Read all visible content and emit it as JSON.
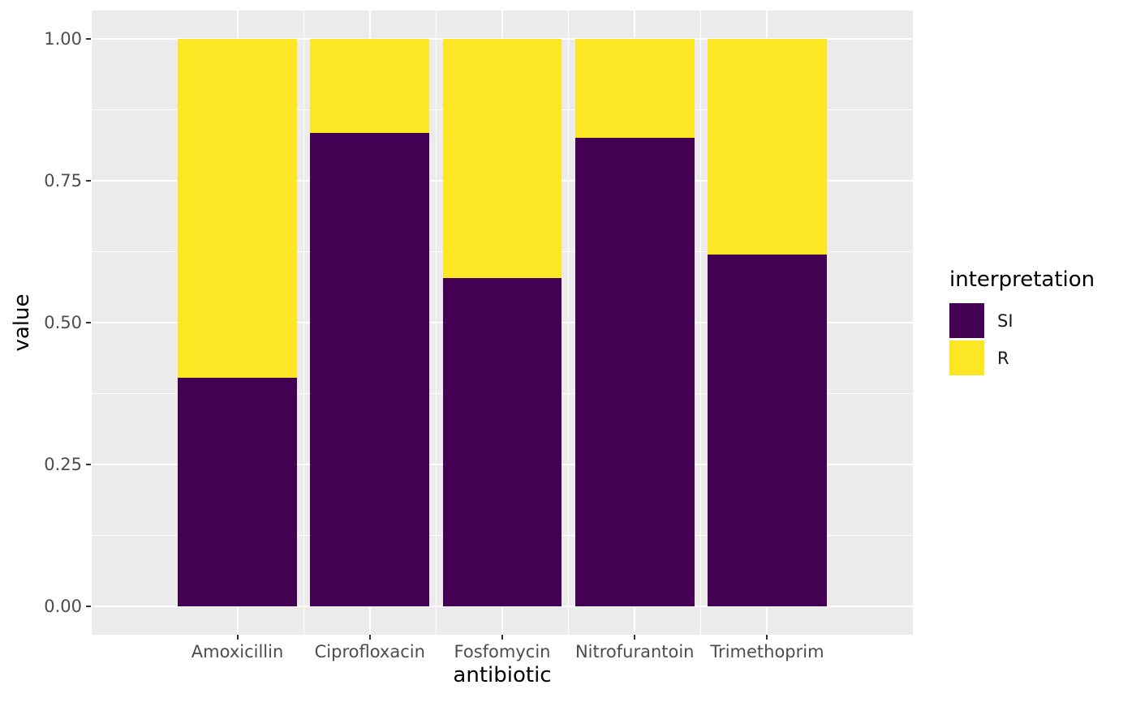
{
  "chart_data": {
    "type": "bar",
    "stacked": true,
    "orientation": "vertical",
    "title": "",
    "xlabel": "antibiotic",
    "ylabel": "value",
    "categories": [
      "Amoxicillin",
      "Ciprofloxacin",
      "Fosfomycin",
      "Nitrofurantoin",
      "Trimethoprim"
    ],
    "series": [
      {
        "name": "SI",
        "color": "#440154",
        "values": [
          0.403,
          0.834,
          0.578,
          0.826,
          0.62
        ]
      },
      {
        "name": "R",
        "color": "#FDE725",
        "values": [
          0.597,
          0.166,
          0.422,
          0.174,
          0.38
        ]
      }
    ],
    "ylim": [
      0,
      1
    ],
    "y_ticks": [
      {
        "value": 0.0,
        "label": "0.00"
      },
      {
        "value": 0.25,
        "label": "0.25"
      },
      {
        "value": 0.5,
        "label": "0.50"
      },
      {
        "value": 0.75,
        "label": "0.75"
      },
      {
        "value": 1.0,
        "label": "1.00"
      }
    ],
    "y_minor_ticks": [
      0.125,
      0.375,
      0.625,
      0.875
    ],
    "grid": {
      "show": true,
      "major": "white 2px",
      "minor": "white 1px"
    },
    "legend": {
      "title": "interpretation",
      "position": "right-center",
      "entries": [
        "SI",
        "R"
      ]
    },
    "theme": {
      "panel_bg": "#EBEBEB",
      "grid_color": "#FFFFFF",
      "tick_label_color": "#4D4D4D",
      "axis_title_color": "#000000",
      "tick_mark_color": "#333333",
      "si_color": "#440154",
      "r_color": "#FDE725"
    }
  }
}
